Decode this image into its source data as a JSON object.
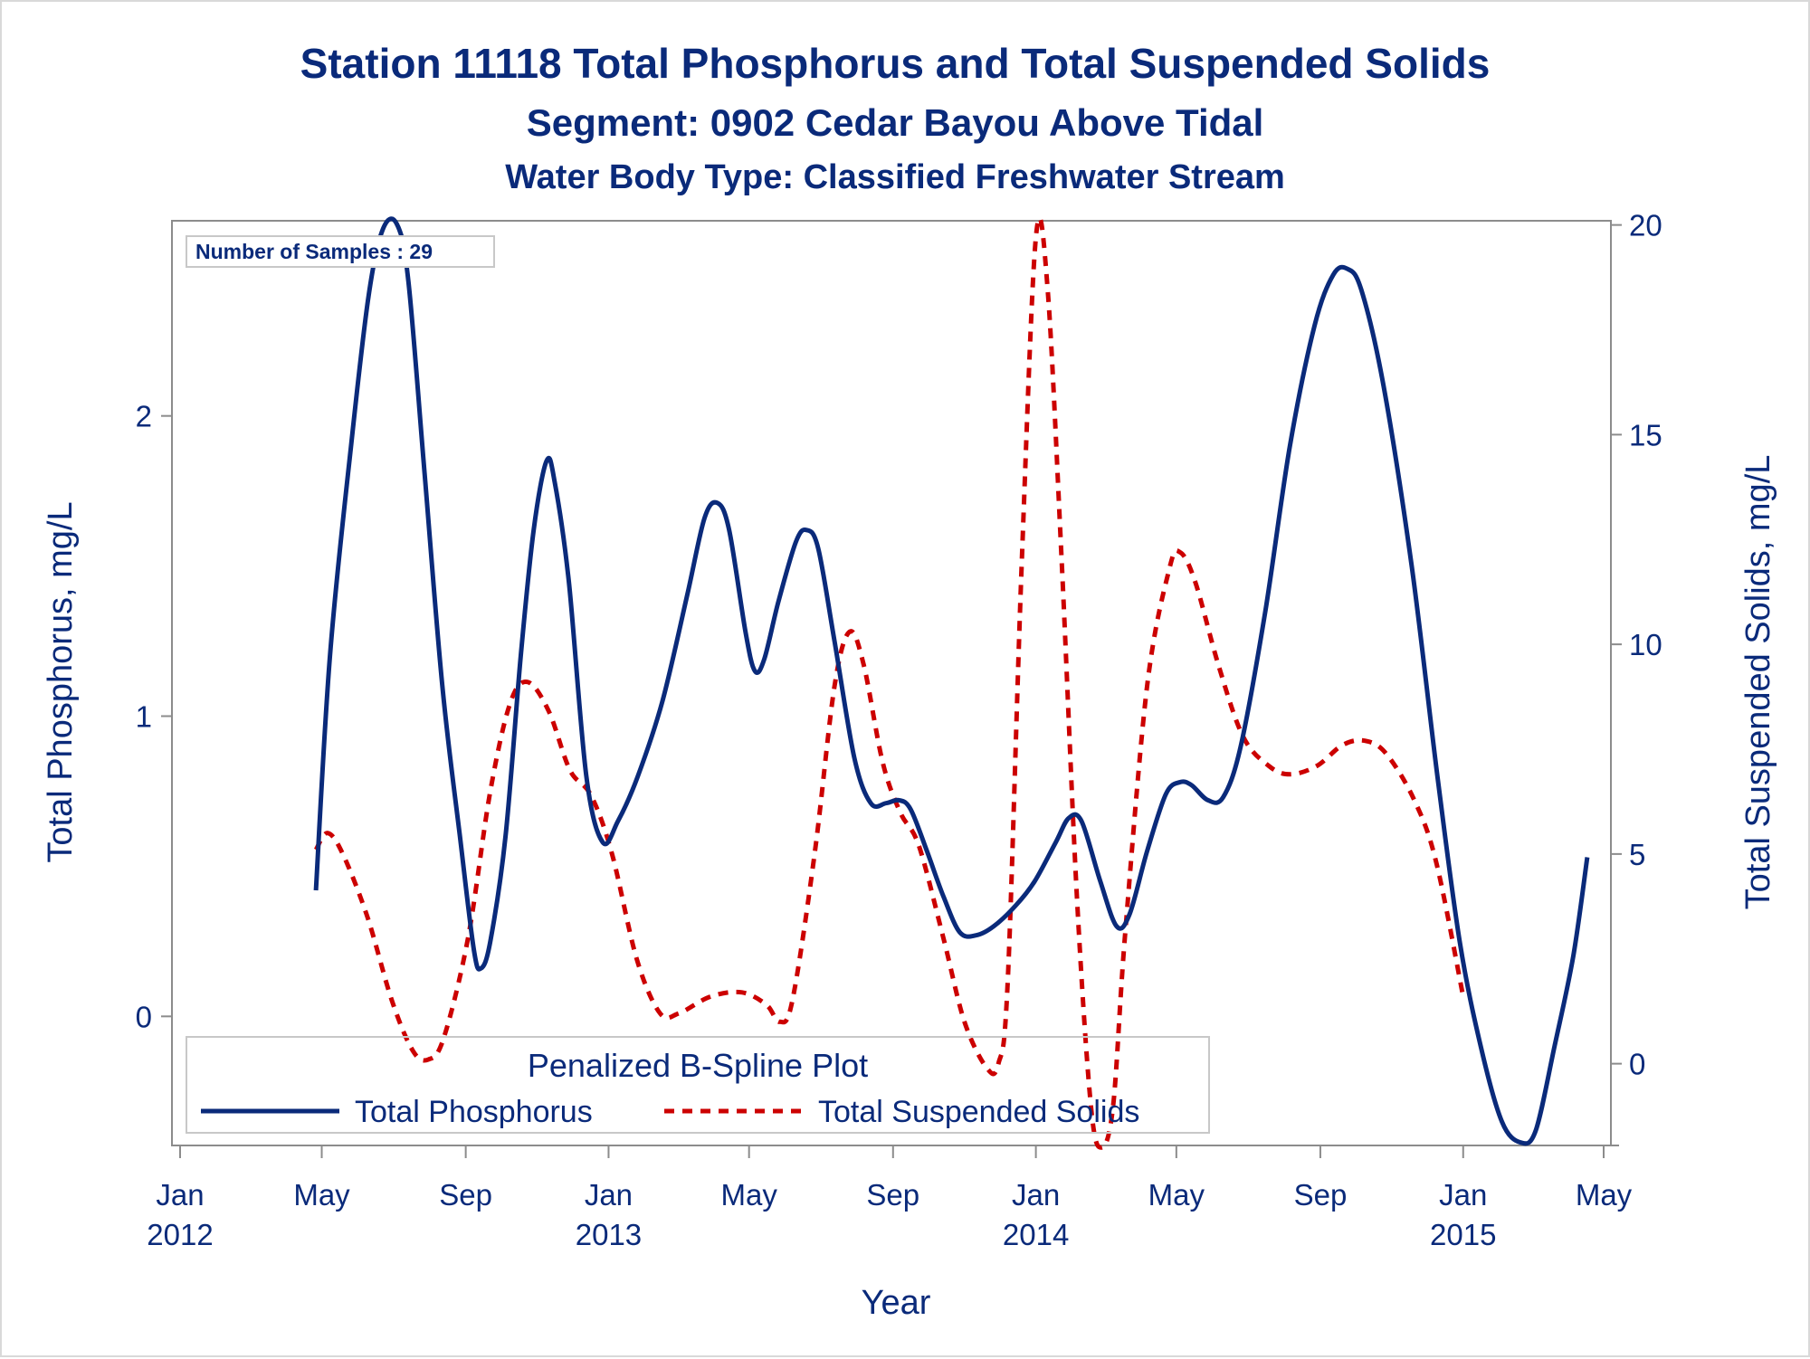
{
  "chart_data": {
    "type": "line",
    "title": "Station 11118  Total Phosphorus and Total Suspended Solids",
    "subtitle": "Segment: 0902  Cedar Bayou Above Tidal",
    "subtitle2": "Water Body Type: Classified Freshwater Stream",
    "xlabel": "Year",
    "ylabel_left": "Total Phosphorus, mg/L",
    "ylabel_right": "Total Suspended Solids, mg/L",
    "xlim": [
      "2012-01-01",
      "2015-05-01"
    ],
    "ylim_left": [
      -0.43,
      2.65
    ],
    "ylim_right": [
      -1.95,
      20.1
    ],
    "x_ticks": [
      {
        "date": "2012-01-01",
        "label": "Jan",
        "year": "2012"
      },
      {
        "date": "2012-05-01",
        "label": "May",
        "year": ""
      },
      {
        "date": "2012-09-01",
        "label": "Sep",
        "year": ""
      },
      {
        "date": "2013-01-01",
        "label": "Jan",
        "year": "2013"
      },
      {
        "date": "2013-05-01",
        "label": "May",
        "year": ""
      },
      {
        "date": "2013-09-01",
        "label": "Sep",
        "year": ""
      },
      {
        "date": "2014-01-01",
        "label": "Jan",
        "year": "2014"
      },
      {
        "date": "2014-05-01",
        "label": "May",
        "year": ""
      },
      {
        "date": "2014-09-01",
        "label": "Sep",
        "year": ""
      },
      {
        "date": "2015-01-01",
        "label": "Jan",
        "year": "2015"
      },
      {
        "date": "2015-05-01",
        "label": "May",
        "year": ""
      }
    ],
    "y_ticks_left": [
      0,
      1,
      2
    ],
    "y_ticks_right": [
      0,
      5,
      10,
      15,
      20
    ],
    "annotation": "Number of Samples : 29",
    "legend": {
      "title": "Penalized B-Spline Plot",
      "placement": "bottom-left inside"
    },
    "series": [
      {
        "name": "Total Phosphorus",
        "axis": "left",
        "color": "#0a2a7a",
        "style": "solid",
        "points": [
          [
            "2012-04-26",
            0.42
          ],
          [
            "2012-05-08",
            1.2
          ],
          [
            "2012-05-26",
            1.9
          ],
          [
            "2012-06-10",
            2.4
          ],
          [
            "2012-06-22",
            2.62
          ],
          [
            "2012-07-04",
            2.64
          ],
          [
            "2012-07-14",
            2.45
          ],
          [
            "2012-07-28",
            1.8
          ],
          [
            "2012-08-12",
            1.1
          ],
          [
            "2012-08-27",
            0.6
          ],
          [
            "2012-09-08",
            0.22
          ],
          [
            "2012-09-14",
            0.16
          ],
          [
            "2012-09-22",
            0.25
          ],
          [
            "2012-10-05",
            0.6
          ],
          [
            "2012-10-18",
            1.2
          ],
          [
            "2012-10-29",
            1.62
          ],
          [
            "2012-11-09",
            1.85
          ],
          [
            "2012-11-16",
            1.78
          ],
          [
            "2012-11-28",
            1.45
          ],
          [
            "2012-12-13",
            0.8
          ],
          [
            "2012-12-27",
            0.58
          ],
          [
            "2013-01-09",
            0.65
          ],
          [
            "2013-01-26",
            0.8
          ],
          [
            "2013-02-16",
            1.05
          ],
          [
            "2013-03-09",
            1.4
          ],
          [
            "2013-03-24",
            1.66
          ],
          [
            "2013-04-04",
            1.71
          ],
          [
            "2013-04-14",
            1.62
          ],
          [
            "2013-04-28",
            1.28
          ],
          [
            "2013-05-06",
            1.15
          ],
          [
            "2013-05-14",
            1.19
          ],
          [
            "2013-05-26",
            1.38
          ],
          [
            "2013-06-10",
            1.58
          ],
          [
            "2013-06-19",
            1.62
          ],
          [
            "2013-06-29",
            1.56
          ],
          [
            "2013-07-13",
            1.25
          ],
          [
            "2013-07-30",
            0.86
          ],
          [
            "2013-08-13",
            0.71
          ],
          [
            "2013-08-26",
            0.71
          ],
          [
            "2013-09-06",
            0.72
          ],
          [
            "2013-09-16",
            0.69
          ],
          [
            "2013-09-30",
            0.55
          ],
          [
            "2013-10-14",
            0.4
          ],
          [
            "2013-10-28",
            0.28
          ],
          [
            "2013-11-11",
            0.27
          ],
          [
            "2013-11-26",
            0.3
          ],
          [
            "2013-12-15",
            0.37
          ],
          [
            "2013-12-31",
            0.45
          ],
          [
            "2014-01-18",
            0.58
          ],
          [
            "2014-01-29",
            0.66
          ],
          [
            "2014-02-09",
            0.65
          ],
          [
            "2014-02-25",
            0.45
          ],
          [
            "2014-03-11",
            0.3
          ],
          [
            "2014-03-22",
            0.34
          ],
          [
            "2014-04-06",
            0.55
          ],
          [
            "2014-04-22",
            0.74
          ],
          [
            "2014-05-04",
            0.78
          ],
          [
            "2014-05-14",
            0.77
          ],
          [
            "2014-05-28",
            0.72
          ],
          [
            "2014-06-10",
            0.73
          ],
          [
            "2014-06-25",
            0.9
          ],
          [
            "2014-07-16",
            1.35
          ],
          [
            "2014-08-06",
            1.9
          ],
          [
            "2014-08-27",
            2.3
          ],
          [
            "2014-09-12",
            2.47
          ],
          [
            "2014-09-24",
            2.49
          ],
          [
            "2014-10-06",
            2.42
          ],
          [
            "2014-10-25",
            2.1
          ],
          [
            "2014-11-18",
            1.5
          ],
          [
            "2014-12-10",
            0.8
          ],
          [
            "2014-12-29",
            0.25
          ],
          [
            "2015-01-16",
            -0.1
          ],
          [
            "2015-02-03",
            -0.35
          ],
          [
            "2015-02-19",
            -0.42
          ],
          [
            "2015-03-04",
            -0.38
          ],
          [
            "2015-03-20",
            -0.1
          ],
          [
            "2015-04-05",
            0.2
          ],
          [
            "2015-04-17",
            0.53
          ]
        ]
      },
      {
        "name": "Total Suspended Solids",
        "axis": "right",
        "color": "#cc0000",
        "style": "dashed",
        "points": [
          [
            "2012-04-26",
            5.1
          ],
          [
            "2012-05-06",
            5.5
          ],
          [
            "2012-05-19",
            5.0
          ],
          [
            "2012-06-09",
            3.5
          ],
          [
            "2012-06-30",
            1.5
          ],
          [
            "2012-07-18",
            0.3
          ],
          [
            "2012-07-31",
            0.1
          ],
          [
            "2012-08-13",
            0.6
          ],
          [
            "2012-09-03",
            3.0
          ],
          [
            "2012-09-22",
            6.5
          ],
          [
            "2012-10-09",
            8.6
          ],
          [
            "2012-10-24",
            9.1
          ],
          [
            "2012-11-11",
            8.4
          ],
          [
            "2012-11-29",
            7.0
          ],
          [
            "2012-12-17",
            6.4
          ],
          [
            "2013-01-04",
            5.0
          ],
          [
            "2013-01-25",
            2.5
          ],
          [
            "2013-02-14",
            1.2
          ],
          [
            "2013-03-02",
            1.2
          ],
          [
            "2013-03-29",
            1.6
          ],
          [
            "2013-04-25",
            1.7
          ],
          [
            "2013-05-16",
            1.4
          ],
          [
            "2013-05-27",
            1.0
          ],
          [
            "2013-06-07",
            1.5
          ],
          [
            "2013-06-26",
            5.0
          ],
          [
            "2013-07-13",
            9.0
          ],
          [
            "2013-07-26",
            10.3
          ],
          [
            "2013-08-07",
            9.5
          ],
          [
            "2013-08-23",
            7.2
          ],
          [
            "2013-09-07",
            6.0
          ],
          [
            "2013-09-23",
            5.2
          ],
          [
            "2013-10-14",
            3.0
          ],
          [
            "2013-11-01",
            1.0
          ],
          [
            "2013-11-20",
            -0.1
          ],
          [
            "2013-11-30",
            0.0
          ],
          [
            "2013-12-08",
            2.0
          ],
          [
            "2013-12-20",
            12.0
          ],
          [
            "2014-01-01",
            19.7
          ],
          [
            "2014-01-11",
            18.5
          ],
          [
            "2014-01-23",
            12.0
          ],
          [
            "2014-02-05",
            4.0
          ],
          [
            "2014-02-17",
            -1.0
          ],
          [
            "2014-02-26",
            -2.0
          ],
          [
            "2014-03-08",
            -1.0
          ],
          [
            "2014-03-18",
            3.0
          ],
          [
            "2014-04-06",
            9.0
          ],
          [
            "2014-04-25",
            11.8
          ],
          [
            "2014-05-04",
            12.2
          ],
          [
            "2014-05-17",
            11.5
          ],
          [
            "2014-06-06",
            9.5
          ],
          [
            "2014-06-27",
            7.8
          ],
          [
            "2014-07-19",
            7.1
          ],
          [
            "2014-08-06",
            6.9
          ],
          [
            "2014-08-29",
            7.1
          ],
          [
            "2014-09-20",
            7.6
          ],
          [
            "2014-10-09",
            7.7
          ],
          [
            "2014-10-27",
            7.4
          ],
          [
            "2014-11-20",
            6.3
          ],
          [
            "2014-12-09",
            4.8
          ],
          [
            "2015-01-01",
            1.6
          ]
        ]
      }
    ]
  }
}
